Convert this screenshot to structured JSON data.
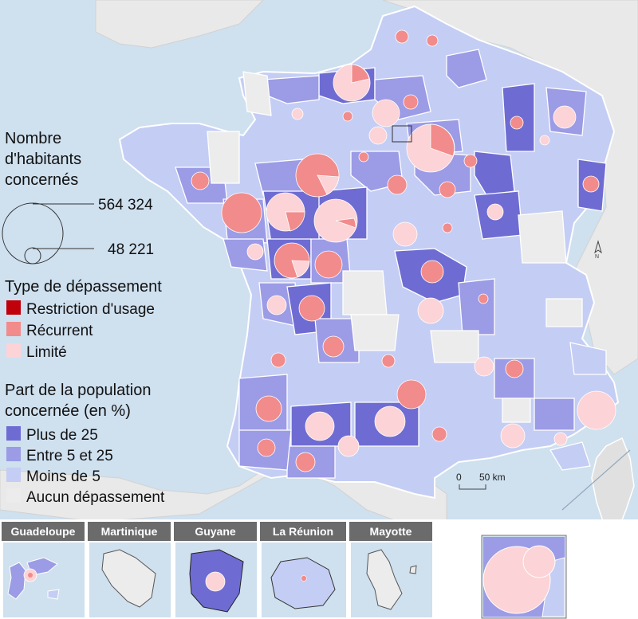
{
  "colors": {
    "sea": "#cfe0ef",
    "plus_25": "#6e6cd2",
    "entre_5_25": "#9b9be6",
    "moins_5": "#c4cdf4",
    "aucun": "#ececec",
    "restriction": "#c0000b",
    "recurrent": "#f28b8b",
    "limite": "#fcd3d6",
    "border": "#ffffff"
  },
  "legend": {
    "size_title_lines": [
      "Nombre",
      "d'habitants",
      "concernés"
    ],
    "size_large_value": "564 324",
    "size_small_value": "48 221",
    "type_title": "Type de dépassement",
    "type_items": [
      {
        "label": "Restriction d'usage",
        "color_key": "restriction"
      },
      {
        "label": "Récurrent",
        "color_key": "recurrent"
      },
      {
        "label": "Limité",
        "color_key": "limite"
      }
    ],
    "share_title_lines": [
      "Part de la population",
      "concernée (en %)"
    ],
    "share_items": [
      {
        "label": "Plus de 25",
        "color_key": "plus_25"
      },
      {
        "label": "Entre 5 et 25",
        "color_key": "entre_5_25"
      },
      {
        "label": "Moins de 5",
        "color_key": "moins_5"
      },
      {
        "label": "Aucun dépassement",
        "color_key": "aucun"
      }
    ]
  },
  "scale": {
    "zero": "0",
    "distance": "50 km"
  },
  "north_label": "N",
  "overseas_tabs": [
    "Guadeloupe",
    "Martinique",
    "Guyane",
    "La Réunion",
    "Mayotte"
  ]
}
